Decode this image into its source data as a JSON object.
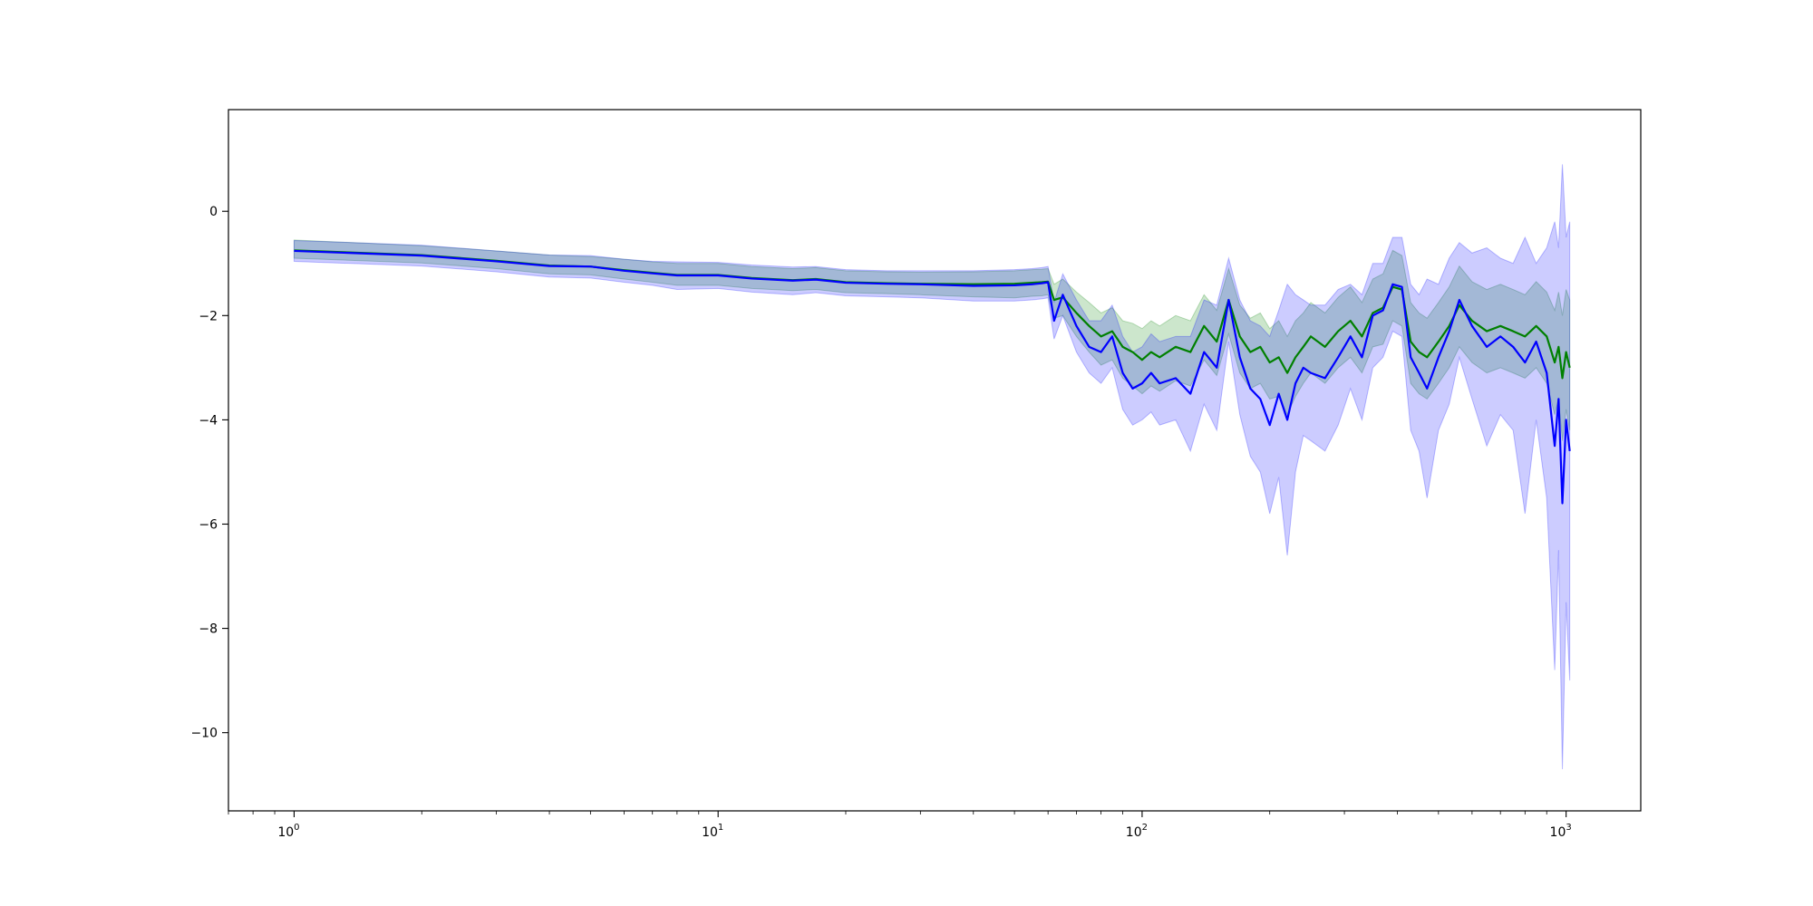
{
  "chart_data": {
    "type": "line",
    "title": "",
    "xlabel": "",
    "ylabel": "",
    "xscale": "log",
    "xlim": [
      0.7,
      1500
    ],
    "ylim": [
      -11.5,
      1.95
    ],
    "grid": false,
    "legend": "none",
    "x_ticks": [
      {
        "value": 1,
        "base": "10",
        "exp": "0"
      },
      {
        "value": 10,
        "base": "10",
        "exp": "1"
      },
      {
        "value": 100,
        "base": "10",
        "exp": "2"
      },
      {
        "value": 1000,
        "base": "10",
        "exp": "3"
      }
    ],
    "y_ticks": [
      {
        "value": 0,
        "label": "0"
      },
      {
        "value": -2,
        "label": "−2"
      },
      {
        "value": -4,
        "label": "−4"
      },
      {
        "value": -6,
        "label": "−6"
      },
      {
        "value": -8,
        "label": "−8"
      },
      {
        "value": -10,
        "label": "−10"
      }
    ],
    "x": [
      1,
      2,
      3,
      4,
      5,
      6,
      7,
      8,
      10,
      12,
      15,
      17,
      20,
      25,
      30,
      40,
      50,
      55,
      58,
      60,
      62,
      65,
      70,
      75,
      80,
      85,
      90,
      95,
      100,
      105,
      110,
      120,
      130,
      140,
      150,
      160,
      170,
      180,
      190,
      200,
      210,
      220,
      230,
      240,
      250,
      270,
      290,
      310,
      330,
      350,
      370,
      390,
      410,
      430,
      450,
      470,
      500,
      530,
      560,
      600,
      650,
      700,
      750,
      800,
      850,
      900,
      940,
      960,
      980,
      1000,
      1020
    ],
    "series": [
      {
        "color": "#008000",
        "band_color": "#008000",
        "y": [
          -0.75,
          -0.84,
          -0.95,
          -1.04,
          -1.06,
          -1.13,
          -1.18,
          -1.22,
          -1.22,
          -1.28,
          -1.32,
          -1.3,
          -1.36,
          -1.38,
          -1.39,
          -1.4,
          -1.39,
          -1.37,
          -1.36,
          -1.35,
          -1.7,
          -1.65,
          -1.95,
          -2.2,
          -2.4,
          -2.3,
          -2.6,
          -2.7,
          -2.85,
          -2.7,
          -2.8,
          -2.6,
          -2.7,
          -2.2,
          -2.5,
          -1.7,
          -2.4,
          -2.7,
          -2.6,
          -2.9,
          -2.8,
          -3.1,
          -2.8,
          -2.6,
          -2.4,
          -2.6,
          -2.3,
          -2.1,
          -2.4,
          -1.95,
          -1.85,
          -1.45,
          -1.5,
          -2.5,
          -2.7,
          -2.8,
          -2.5,
          -2.2,
          -1.8,
          -2.1,
          -2.3,
          -2.2,
          -2.3,
          -2.4,
          -2.2,
          -2.4,
          -2.9,
          -2.6,
          -3.2,
          -2.7,
          -3.0
        ],
        "lower": [
          -0.9,
          -0.99,
          -1.1,
          -1.2,
          -1.22,
          -1.3,
          -1.36,
          -1.42,
          -1.42,
          -1.48,
          -1.52,
          -1.5,
          -1.56,
          -1.58,
          -1.6,
          -1.64,
          -1.66,
          -1.63,
          -1.62,
          -1.6,
          -2.05,
          -2.0,
          -2.4,
          -2.7,
          -2.95,
          -2.85,
          -3.2,
          -3.35,
          -3.5,
          -3.35,
          -3.45,
          -3.25,
          -3.35,
          -2.85,
          -3.15,
          -2.35,
          -3.1,
          -3.4,
          -3.3,
          -3.6,
          -3.55,
          -3.9,
          -3.55,
          -3.3,
          -3.1,
          -3.3,
          -3.0,
          -2.8,
          -3.1,
          -2.6,
          -2.55,
          -2.1,
          -2.2,
          -3.3,
          -3.5,
          -3.6,
          -3.3,
          -3.0,
          -2.6,
          -2.9,
          -3.1,
          -3.0,
          -3.1,
          -3.2,
          -3.0,
          -3.3,
          -3.9,
          -3.6,
          -4.4,
          -3.8,
          -4.2
        ],
        "upper": [
          -0.55,
          -0.66,
          -0.76,
          -0.84,
          -0.87,
          -0.92,
          -0.97,
          -1.0,
          -1.0,
          -1.06,
          -1.1,
          -1.08,
          -1.14,
          -1.16,
          -1.17,
          -1.16,
          -1.14,
          -1.12,
          -1.11,
          -1.1,
          -1.4,
          -1.3,
          -1.55,
          -1.75,
          -1.95,
          -1.85,
          -2.1,
          -2.15,
          -2.25,
          -2.1,
          -2.2,
          -2.0,
          -2.1,
          -1.6,
          -1.9,
          -1.1,
          -1.8,
          -2.05,
          -1.95,
          -2.25,
          -2.1,
          -2.4,
          -2.1,
          -1.95,
          -1.75,
          -1.95,
          -1.65,
          -1.45,
          -1.75,
          -1.3,
          -1.2,
          -0.75,
          -0.85,
          -1.75,
          -1.95,
          -2.05,
          -1.75,
          -1.45,
          -1.05,
          -1.35,
          -1.5,
          -1.4,
          -1.5,
          -1.6,
          -1.35,
          -1.55,
          -1.9,
          -1.55,
          -2.0,
          -1.5,
          -1.7
        ]
      },
      {
        "color": "#0000ff",
        "band_color": "#0000ff",
        "y": [
          -0.76,
          -0.85,
          -0.96,
          -1.05,
          -1.06,
          -1.14,
          -1.19,
          -1.23,
          -1.23,
          -1.29,
          -1.33,
          -1.31,
          -1.37,
          -1.39,
          -1.4,
          -1.43,
          -1.42,
          -1.4,
          -1.38,
          -1.36,
          -2.1,
          -1.6,
          -2.2,
          -2.6,
          -2.7,
          -2.4,
          -3.1,
          -3.4,
          -3.3,
          -3.1,
          -3.3,
          -3.2,
          -3.5,
          -2.7,
          -3.0,
          -1.7,
          -2.8,
          -3.4,
          -3.6,
          -4.1,
          -3.5,
          -4.0,
          -3.3,
          -3.0,
          -3.1,
          -3.2,
          -2.8,
          -2.4,
          -2.8,
          -2.0,
          -1.9,
          -1.4,
          -1.45,
          -2.8,
          -3.1,
          -3.4,
          -2.8,
          -2.3,
          -1.7,
          -2.2,
          -2.6,
          -2.4,
          -2.6,
          -2.9,
          -2.5,
          -3.1,
          -4.5,
          -3.6,
          -5.6,
          -4.0,
          -4.6
        ],
        "lower": [
          -0.96,
          -1.05,
          -1.16,
          -1.26,
          -1.28,
          -1.36,
          -1.42,
          -1.5,
          -1.48,
          -1.55,
          -1.6,
          -1.56,
          -1.62,
          -1.64,
          -1.66,
          -1.72,
          -1.72,
          -1.7,
          -1.68,
          -1.66,
          -2.45,
          -2.0,
          -2.7,
          -3.1,
          -3.3,
          -3.0,
          -3.8,
          -4.1,
          -4.0,
          -3.85,
          -4.1,
          -4.0,
          -4.6,
          -3.7,
          -4.2,
          -2.5,
          -3.9,
          -4.7,
          -5.0,
          -5.8,
          -5.1,
          -6.6,
          -5.0,
          -4.3,
          -4.4,
          -4.6,
          -4.1,
          -3.4,
          -4.0,
          -3.0,
          -2.8,
          -2.3,
          -2.4,
          -4.2,
          -4.6,
          -5.5,
          -4.2,
          -3.7,
          -2.8,
          -3.6,
          -4.5,
          -3.9,
          -4.2,
          -5.8,
          -4.0,
          -5.5,
          -8.8,
          -6.5,
          -10.7,
          -7.5,
          -9.0
        ],
        "upper": [
          -0.56,
          -0.65,
          -0.76,
          -0.84,
          -0.85,
          -0.92,
          -0.96,
          -0.97,
          -0.98,
          -1.03,
          -1.07,
          -1.06,
          -1.12,
          -1.14,
          -1.14,
          -1.14,
          -1.12,
          -1.1,
          -1.08,
          -1.06,
          -1.75,
          -1.2,
          -1.7,
          -2.1,
          -2.1,
          -1.8,
          -2.4,
          -2.7,
          -2.6,
          -2.35,
          -2.5,
          -2.4,
          -2.4,
          -1.7,
          -1.8,
          -0.9,
          -1.7,
          -2.1,
          -2.2,
          -2.4,
          -1.9,
          -1.4,
          -1.6,
          -1.7,
          -1.8,
          -1.8,
          -1.5,
          -1.4,
          -1.6,
          -1.0,
          -1.0,
          -0.5,
          -0.5,
          -1.4,
          -1.6,
          -1.3,
          -1.4,
          -0.9,
          -0.6,
          -0.8,
          -0.7,
          -0.9,
          -1.0,
          -0.5,
          -1.0,
          -0.7,
          -0.2,
          -0.7,
          0.9,
          -0.5,
          -0.2
        ]
      }
    ]
  }
}
